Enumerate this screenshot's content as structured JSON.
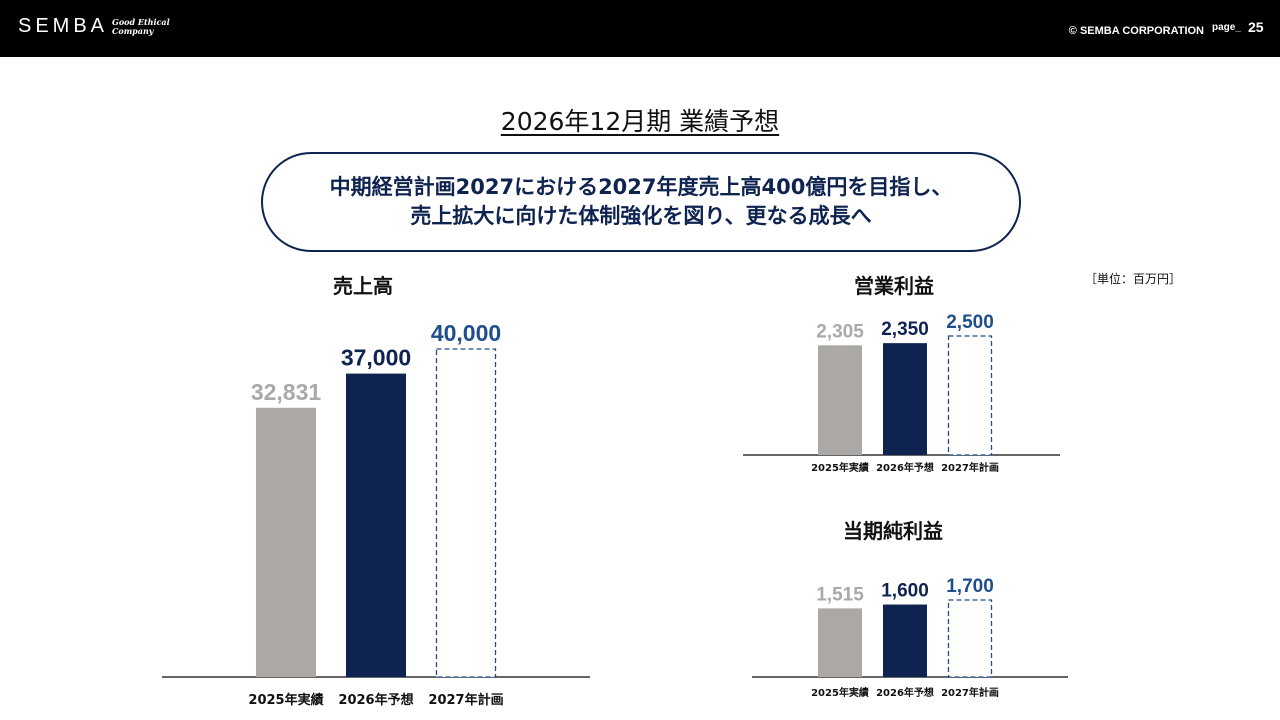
{
  "header": {
    "logo": "SEMBA",
    "tagline_line1": "Good Ethical",
    "tagline_line2": "Company",
    "copyright": "© SEMBA CORPORATION",
    "page_label": "page_",
    "page_number": "25"
  },
  "title": "2026年12月期 業績予想",
  "message": {
    "line1": "中期経営計画2027における2027年度売上高400億円を目指し、",
    "line2": "売上拡大に向けた体制強化を図り、更なる成長へ"
  },
  "unit": "［単位：百万円］",
  "colors": {
    "actual": "#aca8a6",
    "forecast": "#0f2350",
    "plan": "#1f4e8c"
  },
  "chart_data": [
    {
      "type": "bar",
      "title": "売上高",
      "categories": [
        "2025年実績",
        "2026年予想",
        "2027年計画"
      ],
      "values": [
        32831,
        37000,
        40000
      ],
      "value_labels": [
        "32,831",
        "37,000",
        "40,000"
      ],
      "styles": [
        "actual",
        "forecast",
        "plan-dashed"
      ]
    },
    {
      "type": "bar",
      "title": "営業利益",
      "categories": [
        "2025年実績",
        "2026年予想",
        "2027年計画"
      ],
      "values": [
        2305,
        2350,
        2500
      ],
      "value_labels": [
        "2,305",
        "2,350",
        "2,500"
      ],
      "styles": [
        "actual",
        "forecast",
        "plan-dashed"
      ]
    },
    {
      "type": "bar",
      "title": "当期純利益",
      "categories": [
        "2025年実績",
        "2026年予想",
        "2027年計画"
      ],
      "values": [
        1515,
        1600,
        1700
      ],
      "value_labels": [
        "1,515",
        "1,600",
        "1,700"
      ],
      "styles": [
        "actual",
        "forecast",
        "plan-dashed"
      ]
    }
  ]
}
